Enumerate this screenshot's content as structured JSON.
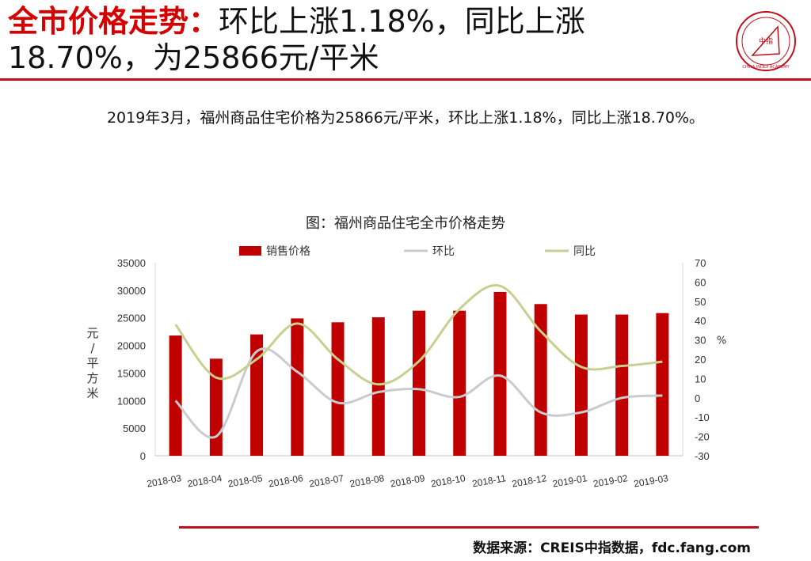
{
  "header": {
    "title_prefix": "全市价格走势：",
    "title_rest": "环比上涨1.18%，同比上涨",
    "title_line2": "18.70%，为25866元/平米"
  },
  "logo": {
    "label": "中指",
    "text": "CHINA INDEX ACADEMY",
    "color": "#c0101a"
  },
  "summary": "2019年3月，福州商品住宅价格为25866元/平米，环比上涨1.18%，同比上涨18.70%。",
  "chart_title": "图：福州商品住宅全市价格走势",
  "source": "数据来源：CREIS中指数据，fdc.fang.com",
  "colors": {
    "accent": "#c0101a",
    "bar": "#c00000",
    "mom_line": "#c8ccd0",
    "yoy_line": "#c9cf8f"
  },
  "chart_data": {
    "type": "bar",
    "categories": [
      "2018-03",
      "2018-04",
      "2018-05",
      "2018-06",
      "2018-07",
      "2018-08",
      "2018-09",
      "2018-10",
      "2018-11",
      "2018-12",
      "2019-01",
      "2019-02",
      "2019-03"
    ],
    "series": [
      {
        "name": "销售价格",
        "type": "bar",
        "axis": "left",
        "values": [
          21800,
          17600,
          22000,
          24900,
          24200,
          25100,
          26300,
          26300,
          29700,
          27500,
          25600,
          25600,
          25866
        ]
      },
      {
        "name": "环比",
        "type": "line",
        "axis": "right",
        "values": [
          -1.5,
          -20.0,
          24.0,
          13.5,
          -2.5,
          3.0,
          4.5,
          0.5,
          11.5,
          -7.5,
          -7.5,
          0.0,
          1.18
        ]
      },
      {
        "name": "同比",
        "type": "line",
        "axis": "right",
        "values": [
          38.0,
          10.5,
          20.0,
          38.5,
          20.0,
          7.0,
          19.0,
          46.0,
          58.0,
          34.5,
          16.0,
          16.5,
          18.7
        ]
      }
    ],
    "ylabel": "元/平方米",
    "y2label": "%",
    "ylim": [
      0,
      35000
    ],
    "yticks": [
      "0",
      "5000",
      "10000",
      "15000",
      "20000",
      "25000",
      "30000",
      "35000"
    ],
    "y2lim": [
      -30,
      70
    ],
    "y2ticks": [
      "-30",
      "-20",
      "-10",
      "0",
      "10",
      "20",
      "30",
      "40",
      "50",
      "60",
      "70"
    ],
    "legend": "top",
    "grid": false
  }
}
